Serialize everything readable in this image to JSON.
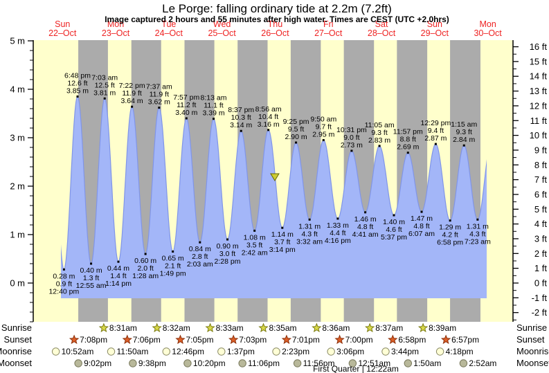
{
  "title": "Le Porge: falling  ordinary tide at 2.2m (7.2ft)",
  "subtitle": "Image captured 2 hours and 55 minutes after high water. Times are CEST (UTC +2.0hrs)",
  "colors": {
    "day_band": "#FFFFCC",
    "night_band": "#ABABAB",
    "water": "#A3B6F8",
    "water_edge": "#8095E8",
    "date_red": "#EE2222",
    "sunrise_star": "#D8D848",
    "sunrise_star_edge": "#7A7A10",
    "sunset_star": "#DC5F28",
    "sunset_star_edge": "#8B2E08",
    "moonrise_circle": "#FFFFD6",
    "moonrise_circle_edge": "#8A8A66",
    "moonset_circle": "#B8B89A",
    "moonset_circle_edge": "#77775A",
    "marker": "#CCCC33",
    "marker_edge": "#666600"
  },
  "chart_data": {
    "type": "area",
    "title": "Le Porge: falling ordinary tide at 2.2m (7.2ft)",
    "x_axis_note": "t = hours since 22-Oct 00:00 local (CEST)",
    "days": [
      {
        "name": "Sun",
        "date": "22–Oct",
        "t_noon": 12
      },
      {
        "name": "Mon",
        "date": "23–Oct",
        "t_noon": 36
      },
      {
        "name": "Tue",
        "date": "24–Oct",
        "t_noon": 60
      },
      {
        "name": "Wed",
        "date": "25–Oct",
        "t_noon": 84
      },
      {
        "name": "Thu",
        "date": "26–Oct",
        "t_noon": 108
      },
      {
        "name": "Fri",
        "date": "27–Oct",
        "t_noon": 132
      },
      {
        "name": "Sat",
        "date": "28–Oct",
        "t_noon": 156
      },
      {
        "name": "Sun",
        "date": "29–Oct",
        "t_noon": 180
      },
      {
        "name": "Mon",
        "date": "30–Oct",
        "t_noon": 204
      }
    ],
    "y_left": {
      "unit": "m",
      "ticks": [
        0,
        1,
        2,
        3,
        4,
        5
      ]
    },
    "y_right": {
      "unit": "ft",
      "ticks": [
        -2,
        -1,
        0,
        1,
        2,
        3,
        4,
        5,
        6,
        7,
        8,
        9,
        10,
        11,
        12,
        13,
        14,
        15,
        16
      ]
    },
    "extremes": [
      {
        "kind": "low",
        "time": "12:40 pm",
        "t": 12.667,
        "m": 0.28,
        "ft": 0.9
      },
      {
        "kind": "high",
        "time": "6:48 pm",
        "t": 18.8,
        "m": 3.85,
        "ft": 12.6
      },
      {
        "kind": "low",
        "time": "12:55 am",
        "t": 24.917,
        "m": 0.4,
        "ft": 1.3
      },
      {
        "kind": "high",
        "time": "7:03 am",
        "t": 31.05,
        "m": 3.81,
        "ft": 12.5
      },
      {
        "kind": "low",
        "time": "1:14 pm",
        "t": 37.233,
        "m": 0.44,
        "ft": 1.4
      },
      {
        "kind": "high",
        "time": "7:22 pm",
        "t": 43.367,
        "m": 3.64,
        "ft": 11.9
      },
      {
        "kind": "low",
        "time": "1:28 am",
        "t": 49.467,
        "m": 0.6,
        "ft": 2.0
      },
      {
        "kind": "high",
        "time": "7:37 am",
        "t": 55.617,
        "m": 3.62,
        "ft": 11.9
      },
      {
        "kind": "low",
        "time": "1:49 pm",
        "t": 61.817,
        "m": 0.65,
        "ft": 2.1
      },
      {
        "kind": "high",
        "time": "7:57 pm",
        "t": 67.95,
        "m": 3.4,
        "ft": 11.2
      },
      {
        "kind": "low",
        "time": "2:03 am",
        "t": 74.05,
        "m": 0.84,
        "ft": 2.8
      },
      {
        "kind": "high",
        "time": "8:13 am",
        "t": 80.217,
        "m": 3.39,
        "ft": 11.1
      },
      {
        "kind": "low",
        "time": "2:28 pm",
        "t": 86.467,
        "m": 0.9,
        "ft": 3.0
      },
      {
        "kind": "high",
        "time": "8:37 pm",
        "t": 92.617,
        "m": 3.14,
        "ft": 10.3
      },
      {
        "kind": "low",
        "time": "2:42 am",
        "t": 98.7,
        "m": 1.08,
        "ft": 3.5
      },
      {
        "kind": "high",
        "time": "8:56 am",
        "t": 104.933,
        "m": 3.16,
        "ft": 10.4
      },
      {
        "kind": "low",
        "time": "3:14 pm",
        "t": 111.233,
        "m": 1.14,
        "ft": 3.7
      },
      {
        "kind": "high",
        "time": "9:25 pm",
        "t": 117.417,
        "m": 2.9,
        "ft": 9.5
      },
      {
        "kind": "low",
        "time": "3:32 am",
        "t": 123.533,
        "m": 1.31,
        "ft": 4.3
      },
      {
        "kind": "high",
        "time": "9:50 am",
        "t": 129.833,
        "m": 2.95,
        "ft": 9.7
      },
      {
        "kind": "low",
        "time": "4:16 pm",
        "t": 136.267,
        "m": 1.33,
        "ft": 4.4
      },
      {
        "kind": "high",
        "time": "10:31 pm",
        "t": 142.517,
        "m": 2.73,
        "ft": 9.0
      },
      {
        "kind": "low",
        "time": "4:41 am",
        "t": 148.683,
        "m": 1.46,
        "ft": 4.8
      },
      {
        "kind": "high",
        "time": "11:05 am",
        "t": 155.083,
        "m": 2.83,
        "ft": 9.3
      },
      {
        "kind": "low",
        "time": "5:37 pm",
        "t": 161.617,
        "m": 1.4,
        "ft": 4.6
      },
      {
        "kind": "high",
        "time": "11:57 pm",
        "t": 167.95,
        "m": 2.69,
        "ft": 8.8
      },
      {
        "kind": "low",
        "time": "6:07 am",
        "t": 174.117,
        "m": 1.47,
        "ft": 4.8
      },
      {
        "kind": "high",
        "time": "12:29 pm",
        "t": 180.483,
        "m": 2.87,
        "ft": 9.4
      },
      {
        "kind": "low",
        "time": "6:58 pm",
        "t": 186.967,
        "m": 1.29,
        "ft": 4.2
      },
      {
        "kind": "high",
        "time": "1:15 am",
        "t": 193.25,
        "m": 2.84,
        "ft": 9.3
      },
      {
        "kind": "low",
        "time": "7:23 am",
        "t": 199.383,
        "m": 1.31,
        "ft": 4.3
      }
    ],
    "capture_marker": {
      "t": 107.85,
      "m": 2.2
    }
  },
  "sun_moon": {
    "rows": [
      {
        "label": "Sunrise",
        "icon": "sunrise",
        "events": [
          {
            "time": "8:31am",
            "t": 32.517
          },
          {
            "time": "8:32am",
            "t": 56.533
          },
          {
            "time": "8:33am",
            "t": 80.55
          },
          {
            "time": "8:35am",
            "t": 104.583
          },
          {
            "time": "8:36am",
            "t": 128.6
          },
          {
            "time": "8:37am",
            "t": 152.617
          },
          {
            "time": "8:39am",
            "t": 176.65
          }
        ]
      },
      {
        "label": "Sunset",
        "icon": "sunset",
        "events": [
          {
            "time": "7:08pm",
            "t": 19.133
          },
          {
            "time": "7:06pm",
            "t": 43.1
          },
          {
            "time": "7:05pm",
            "t": 67.083
          },
          {
            "time": "7:03pm",
            "t": 91.05
          },
          {
            "time": "7:01pm",
            "t": 115.017
          },
          {
            "time": "7:00pm",
            "t": 139.0
          },
          {
            "time": "6:58pm",
            "t": 162.967
          },
          {
            "time": "6:57pm",
            "t": 186.95
          }
        ]
      },
      {
        "label": "Moonrise",
        "icon": "moonrise",
        "events": [
          {
            "time": "10:52am",
            "t": 10.867
          },
          {
            "time": "11:50am",
            "t": 35.833
          },
          {
            "time": "12:46pm",
            "t": 60.767
          },
          {
            "time": "1:37pm",
            "t": 85.617
          },
          {
            "time": "2:23pm",
            "t": 110.383
          },
          {
            "time": "3:06pm",
            "t": 135.1
          },
          {
            "time": "3:44pm",
            "t": 159.733
          },
          {
            "time": "4:18pm",
            "t": 184.3
          }
        ]
      },
      {
        "label": "Moonset",
        "icon": "moonset",
        "events": [
          {
            "time": "9:02pm",
            "t": 21.033
          },
          {
            "time": "9:38pm",
            "t": 45.633
          },
          {
            "time": "10:20pm",
            "t": 70.333
          },
          {
            "time": "11:06pm",
            "t": 95.1
          },
          {
            "time": "11:56pm",
            "t": 119.933
          },
          {
            "time": "12:51am",
            "t": 144.85
          },
          {
            "time": "1:50am",
            "t": 169.833
          },
          {
            "time": "2:52am",
            "t": 194.867
          }
        ]
      }
    ],
    "moon_phase": {
      "text": "First Quarter | 12:22am",
      "t": 144.367
    }
  }
}
